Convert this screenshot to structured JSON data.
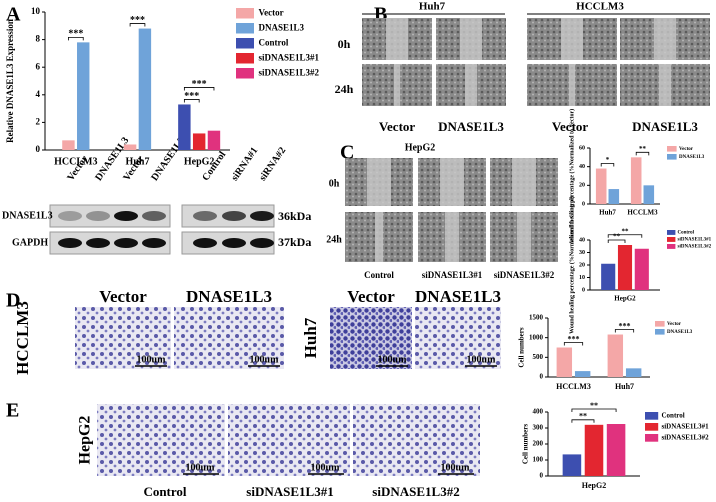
{
  "figure": {
    "panel_labels": [
      "A",
      "B",
      "C",
      "D",
      "E"
    ],
    "blot": {
      "lanes": [
        "Vector",
        "DNASE1L3",
        "Vector",
        "DNASE1L3",
        "Control",
        "siRNA#1",
        "siRNA#2"
      ],
      "bands": [
        "DNASE1L3",
        "GAPDH"
      ],
      "sizes": [
        "36kDa",
        "37kDa"
      ]
    },
    "B": {
      "lines": [
        "Huh7",
        "HCCLM3"
      ],
      "times": [
        "0h",
        "24h"
      ],
      "groups": [
        "Vector",
        "DNASE1L3",
        "Vector",
        "DNASE1L3"
      ]
    },
    "C": {
      "line": "HepG2",
      "times": [
        "0h",
        "24h"
      ],
      "groups": [
        "Control",
        "siDNASE1L3#1",
        "siDNASE1L3#2"
      ]
    },
    "D": {
      "groups": [
        "Vector",
        "DNASE1L3",
        "Vector",
        "DNASE1L3"
      ],
      "lines": [
        "HCCLM3",
        "Huh7"
      ],
      "scale": [
        "100um",
        "100um",
        "100um",
        "100um"
      ]
    },
    "E": {
      "line": "HepG2",
      "groups": [
        "Control",
        "siDNASE1L3#1",
        "siDNASE1L3#2"
      ],
      "scale": [
        "100um",
        "100um",
        "100um"
      ]
    }
  },
  "chart_data": [
    {
      "type": "bar",
      "y_label": "Relative DNASE1L3 Expression",
      "categories": [
        "HCCLM3",
        "Huh7",
        "HepG2"
      ],
      "series": [
        {
          "name": "Vector",
          "color": "#f4a7a7",
          "values": [
            0.7,
            0.4,
            null
          ]
        },
        {
          "name": "DNASE1L3",
          "color": "#6fa3d9",
          "values": [
            7.8,
            8.8,
            null
          ]
        },
        {
          "name": "Control",
          "color": "#3d4fb0",
          "values": [
            null,
            null,
            3.3
          ]
        },
        {
          "name": "siDNASE1L3#1",
          "color": "#e32630",
          "values": [
            null,
            null,
            1.2
          ]
        },
        {
          "name": "siDNASE1L3#2",
          "color": "#e0327e",
          "values": [
            null,
            null,
            1.4
          ]
        }
      ],
      "ylim": [
        0,
        10
      ],
      "yticks": [
        0,
        2,
        4,
        6,
        8,
        10
      ],
      "annotations": [
        "***",
        "***",
        "***",
        "***"
      ]
    },
    {
      "type": "bar",
      "y_label": "Wound healing percentage (%Normalized to Vector)",
      "categories": [
        "Huh7",
        "HCCLM3"
      ],
      "series": [
        {
          "name": "Vector",
          "color": "#f4a7a7",
          "values": [
            38,
            50
          ]
        },
        {
          "name": "DNASE1L3",
          "color": "#6fa3d9",
          "values": [
            16,
            20
          ]
        }
      ],
      "ylim": [
        0,
        60
      ],
      "yticks": [
        0,
        20,
        40,
        60
      ],
      "annotations": [
        "*",
        "**"
      ]
    },
    {
      "type": "bar",
      "y_label": "Wound healing percentage (%Normalized to Control)",
      "categories": [
        "HepG2"
      ],
      "series": [
        {
          "name": "Control",
          "color": "#3d4fb0",
          "values": [
            21
          ]
        },
        {
          "name": "siDNASE1L3#1",
          "color": "#e32630",
          "values": [
            36
          ]
        },
        {
          "name": "siDNASE1L3#2",
          "color": "#e0327e",
          "values": [
            33
          ]
        }
      ],
      "ylim": [
        0,
        40
      ],
      "yticks": [
        0,
        10,
        20,
        30,
        40
      ],
      "annotations": [
        "**",
        "**"
      ]
    },
    {
      "type": "bar",
      "y_label": "Cell numbers",
      "categories": [
        "HCCLM3",
        "Huh7"
      ],
      "series": [
        {
          "name": "Vector",
          "color": "#f4a7a7",
          "values": [
            750,
            1080
          ]
        },
        {
          "name": "DNASE1L3",
          "color": "#6fa3d9",
          "values": [
            150,
            220
          ]
        }
      ],
      "ylim": [
        0,
        1500
      ],
      "yticks": [
        0,
        500,
        1000,
        1500
      ],
      "annotations": [
        "***",
        "***"
      ]
    },
    {
      "type": "bar",
      "y_label": "Cell numbers",
      "categories": [
        "HepG2"
      ],
      "series": [
        {
          "name": "Control",
          "color": "#3d4fb0",
          "values": [
            135
          ]
        },
        {
          "name": "siDNASE1L3#1",
          "color": "#e32630",
          "values": [
            320
          ]
        },
        {
          "name": "siDNASE1L3#2",
          "color": "#e0327e",
          "values": [
            325
          ]
        }
      ],
      "ylim": [
        0,
        400
      ],
      "yticks": [
        0,
        100,
        200,
        300,
        400
      ],
      "annotations": [
        "**",
        "**"
      ]
    }
  ]
}
